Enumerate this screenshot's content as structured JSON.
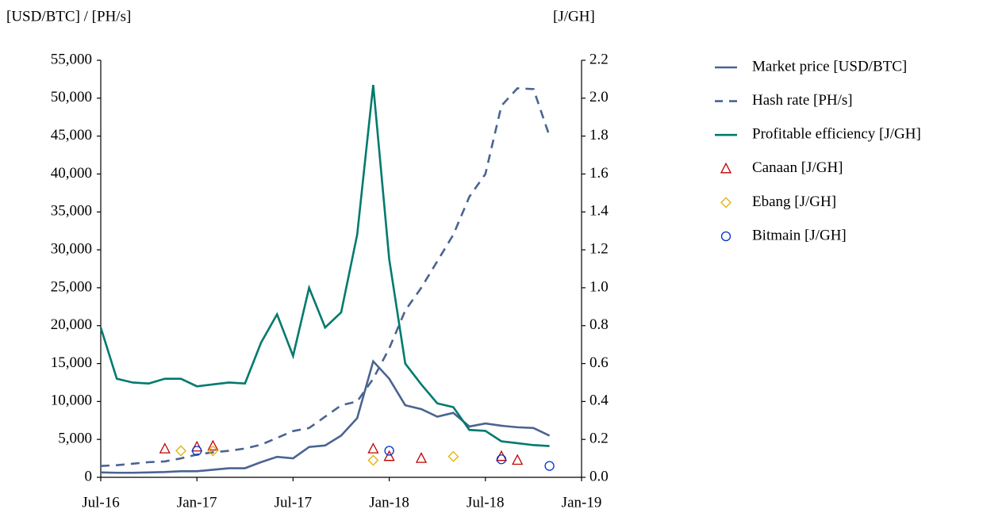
{
  "chart_data": {
    "type": "line",
    "y_label": "[USD/BTC]  /  [PH/s]",
    "y2_label": "[J/GH]",
    "x": [
      "2016-07",
      "2016-08",
      "2016-09",
      "2016-10",
      "2016-11",
      "2016-12",
      "2017-01",
      "2017-02",
      "2017-03",
      "2017-04",
      "2017-05",
      "2017-06",
      "2017-07",
      "2017-08",
      "2017-09",
      "2017-10",
      "2017-11",
      "2017-12",
      "2018-01",
      "2018-02",
      "2018-03",
      "2018-04",
      "2018-05",
      "2018-06",
      "2018-07",
      "2018-08",
      "2018-09",
      "2018-10",
      "2018-11"
    ],
    "xlim": [
      "2016-07",
      "2019-01"
    ],
    "xticks": [
      {
        "value": "2016-07",
        "label": "Jul-16"
      },
      {
        "value": "2017-01",
        "label": "Jan-17"
      },
      {
        "value": "2017-07",
        "label": "Jul-17"
      },
      {
        "value": "2018-01",
        "label": "Jan-18"
      },
      {
        "value": "2018-07",
        "label": "Jul-18"
      },
      {
        "value": "2019-01",
        "label": "Jan-19"
      }
    ],
    "ylim": [
      0,
      55000
    ],
    "yticks": [
      0,
      {
        "value": 5000,
        "label": "5,000"
      },
      {
        "value": 10000,
        "label": "10,000"
      },
      {
        "value": 15000,
        "label": "15,000"
      },
      {
        "value": 20000,
        "label": "20,000"
      },
      {
        "value": 25000,
        "label": "25,000"
      },
      {
        "value": 30000,
        "label": "30,000"
      },
      {
        "value": 35000,
        "label": "35,000"
      },
      {
        "value": 40000,
        "label": "40,000"
      },
      {
        "value": 45000,
        "label": "45,000"
      },
      {
        "value": 50000,
        "label": "50,000"
      },
      {
        "value": 55000,
        "label": "55,000"
      }
    ],
    "y2lim": [
      0,
      2.2
    ],
    "y2ticks": [
      {
        "value": 0,
        "label": "0.0"
      },
      0.2,
      0.4,
      0.6,
      0.8,
      {
        "value": 1,
        "label": "1.0"
      },
      1.2,
      1.4,
      1.6,
      1.8,
      {
        "value": 2,
        "label": "2.0"
      },
      2.2
    ],
    "series": [
      {
        "name": "Market price [USD/BTC]",
        "color": "#4a6491",
        "dash": false,
        "values": [
          650,
          600,
          600,
          650,
          700,
          800,
          800,
          1000,
          1200,
          1200,
          2000,
          2700,
          2500,
          4000,
          4200,
          5500,
          7800,
          15300,
          13000,
          9500,
          9000,
          8000,
          8500,
          6700,
          7100,
          6800,
          6600,
          6500,
          5500
        ]
      },
      {
        "name": "Hash rate [PH/s]",
        "color": "#4a6491",
        "dash": true,
        "values": [
          1500,
          1600,
          1800,
          2000,
          2100,
          2500,
          3000,
          3300,
          3500,
          3800,
          4300,
          5200,
          6100,
          6500,
          8000,
          9500,
          10000,
          13000,
          17000,
          22000,
          25000,
          28500,
          32000,
          37000,
          40000,
          49000,
          51300,
          51200,
          45000
        ]
      },
      {
        "name": "Profitable efficiency [J/GH]",
        "color": "#007a6e",
        "dash": false,
        "axis": "y2",
        "values": [
          0.79,
          0.52,
          0.5,
          0.495,
          0.52,
          0.52,
          0.48,
          0.49,
          0.5,
          0.495,
          0.71,
          0.86,
          0.64,
          1.0,
          0.79,
          0.87,
          1.28,
          2.07,
          1.15,
          0.6,
          0.49,
          0.39,
          0.37,
          0.25,
          0.245,
          0.19,
          0.18,
          0.17,
          0.165
        ]
      },
      {
        "name": "Canaan  [J/GH]",
        "type": "scatter",
        "marker": "triangle",
        "color": "#c00000",
        "axis": "y2",
        "x": [
          "2016-11",
          "2017-01",
          "2017-02",
          "2017-12",
          "2018-01",
          "2018-03",
          "2018-08",
          "2018-09"
        ],
        "values": [
          0.15,
          0.16,
          0.165,
          0.15,
          0.11,
          0.1,
          0.11,
          0.09
        ]
      },
      {
        "name": "Ebang  [J/GH]",
        "type": "scatter",
        "marker": "diamond",
        "color": "#e0b000",
        "axis": "y2",
        "x": [
          "2016-12",
          "2017-02",
          "2017-12",
          "2018-05"
        ],
        "values": [
          0.14,
          0.14,
          0.09,
          0.11
        ]
      },
      {
        "name": "Bitmain  [J/GH]",
        "type": "scatter",
        "marker": "circle",
        "color": "#0033cc",
        "axis": "y2",
        "x": [
          "2017-01",
          "2018-01",
          "2018-08",
          "2018-11"
        ],
        "values": [
          0.14,
          0.14,
          0.095,
          0.06
        ]
      }
    ]
  }
}
